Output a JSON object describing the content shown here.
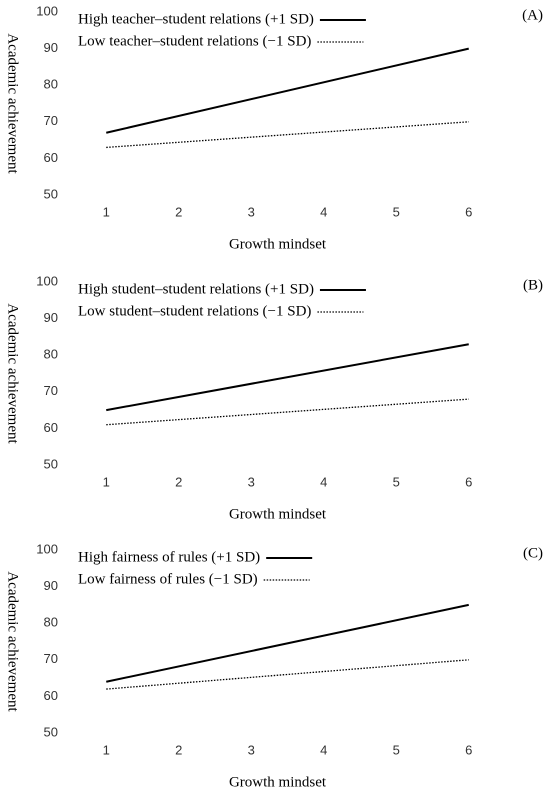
{
  "chart_data": [
    {
      "type": "line",
      "panel_label": "(A)",
      "xlabel": "Growth mindset",
      "ylabel": "Academic achievement",
      "x": [
        1,
        6
      ],
      "xlim": [
        0.5,
        6.5
      ],
      "xticks": [
        1,
        2,
        3,
        4,
        5,
        6
      ],
      "ylim": [
        50,
        100
      ],
      "yticks": [
        50,
        60,
        70,
        80,
        90,
        100
      ],
      "grid": false,
      "legend": "upper left",
      "series": [
        {
          "name": "High teacher–student relations (+1 SD)",
          "color": "#000000",
          "line_style": "solid",
          "values": [
            67,
            90
          ]
        },
        {
          "name": "Low teacher–student relations (−1 SD)",
          "color": "#000000",
          "line_style": "dotted",
          "values": [
            63,
            70
          ]
        }
      ]
    },
    {
      "type": "line",
      "panel_label": "(B)",
      "xlabel": "Growth mindset",
      "ylabel": "Academic achievement",
      "x": [
        1,
        6
      ],
      "xlim": [
        0.5,
        6.5
      ],
      "xticks": [
        1,
        2,
        3,
        4,
        5,
        6
      ],
      "ylim": [
        50,
        100
      ],
      "yticks": [
        50,
        60,
        70,
        80,
        90,
        100
      ],
      "grid": false,
      "legend": "upper left",
      "series": [
        {
          "name": "High student–student relations (+1 SD)",
          "color": "#000000",
          "line_style": "solid",
          "values": [
            65,
            83
          ]
        },
        {
          "name": "Low student–student relations (−1 SD)",
          "color": "#000000",
          "line_style": "dotted",
          "values": [
            61,
            68
          ]
        }
      ]
    },
    {
      "type": "line",
      "panel_label": "(C)",
      "xlabel": "Growth mindset",
      "ylabel": "Academic achievement",
      "x": [
        1,
        6
      ],
      "xlim": [
        0.5,
        6.5
      ],
      "xticks": [
        1,
        2,
        3,
        4,
        5,
        6
      ],
      "ylim": [
        50,
        100
      ],
      "yticks": [
        50,
        60,
        70,
        80,
        90,
        100
      ],
      "grid": false,
      "legend": "upper left",
      "series": [
        {
          "name": "High fairness of rules (+1 SD)",
          "color": "#000000",
          "line_style": "solid",
          "values": [
            64,
            85
          ]
        },
        {
          "name": "Low fairness of rules (−1 SD)",
          "color": "#000000",
          "line_style": "dotted",
          "values": [
            62,
            70
          ]
        }
      ]
    }
  ]
}
